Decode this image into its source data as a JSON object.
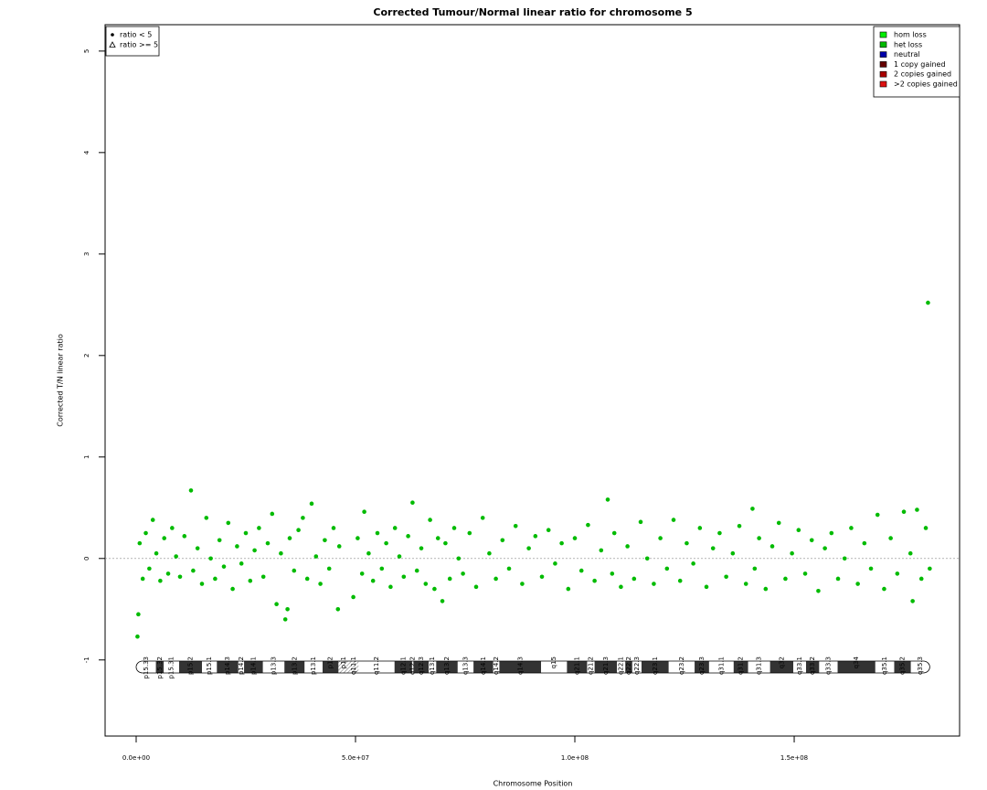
{
  "chart_data": {
    "type": "scatter",
    "title": "Corrected Tumour/Normal linear ratio for chromosome  5",
    "x_label": "Chromosome Position",
    "y_label": "Corrected T/N linear ratio",
    "xlim": [
      -7080000,
      187700000
    ],
    "ylim": [
      -1.75,
      5.26
    ],
    "xticks": [
      {
        "value": 0,
        "label": "0.0e+00"
      },
      {
        "value": 50000000,
        "label": "5.0e+07"
      },
      {
        "value": 100000000,
        "label": "1.0e+08"
      },
      {
        "value": 150000000,
        "label": "1.5e+08"
      }
    ],
    "yticks": [
      -1,
      0,
      1,
      2,
      3,
      4,
      5
    ],
    "reference_line": 0,
    "shape_legend": [
      "ratio < 5",
      "ratio >= 5"
    ],
    "legend_position": "top-right",
    "legend": [
      {
        "name": "hom loss",
        "color": "#00ee00"
      },
      {
        "name": "het loss",
        "color": "#00bb00"
      },
      {
        "name": "neutral",
        "color": "#0000aa"
      },
      {
        "name": "1 copy gained",
        "color": "#660000"
      },
      {
        "name": "2 copies gained",
        "color": "#aa0000"
      },
      {
        "name": ">2 copies gained",
        "color": "#dd1111"
      }
    ],
    "series": [
      {
        "name": "het loss",
        "color": "#00bb00",
        "x": [
          300000,
          500000,
          800000,
          1500000,
          2200000,
          3000000,
          3800000,
          4600000,
          5500000,
          6400000,
          7300000,
          8200000,
          9100000,
          10000000,
          11000000,
          12500000,
          13000000,
          14000000,
          15000000,
          16000000,
          17000000,
          18000000,
          19000000,
          20000000,
          21000000,
          22000000,
          23000000,
          24000000,
          25000000,
          26000000,
          27000000,
          28000000,
          29000000,
          30000000,
          31000000,
          32000000,
          33000000,
          34000000,
          34500000,
          35000000,
          36000000,
          37000000,
          38000000,
          39000000,
          40000000,
          41000000,
          42000000,
          43000000,
          44000000,
          45000000,
          46000000,
          46300000,
          49500000,
          50500000,
          51500000,
          52000000,
          53000000,
          54000000,
          55000000,
          56000000,
          57000000,
          58000000,
          59000000,
          60000000,
          61000000,
          62000000,
          63000000,
          64000000,
          65000000,
          66000000,
          67000000,
          68000000,
          68800000,
          69800000,
          70500000,
          71500000,
          72500000,
          73500000,
          74500000,
          76000000,
          77500000,
          79000000,
          80500000,
          82000000,
          83500000,
          85000000,
          86500000,
          88000000,
          89500000,
          91000000,
          92500000,
          94000000,
          95500000,
          97000000,
          98500000,
          100000000,
          101500000,
          103000000,
          104500000,
          106000000,
          107500000,
          108500000,
          109000000,
          110500000,
          112000000,
          113500000,
          115000000,
          116500000,
          118000000,
          119500000,
          121000000,
          122500000,
          124000000,
          125500000,
          127000000,
          128500000,
          130000000,
          131500000,
          133000000,
          134500000,
          136000000,
          137500000,
          139000000,
          140500000,
          141000000,
          142000000,
          143500000,
          145000000,
          146500000,
          148000000,
          149500000,
          151000000,
          152500000,
          154000000,
          155500000,
          157000000,
          158500000,
          160000000,
          161500000,
          163000000,
          164500000,
          166000000,
          167500000,
          169000000,
          170500000,
          172000000,
          173500000,
          175000000,
          176500000,
          177000000,
          178000000,
          179000000,
          180000000,
          180500000,
          180900000
        ],
        "values": [
          -0.77,
          -0.55,
          0.15,
          -0.2,
          0.25,
          -0.1,
          0.38,
          0.05,
          -0.22,
          0.2,
          -0.15,
          0.3,
          0.02,
          -0.18,
          0.22,
          0.67,
          -0.12,
          0.1,
          -0.25,
          0.4,
          0.0,
          -0.2,
          0.18,
          -0.08,
          0.35,
          -0.3,
          0.12,
          -0.05,
          0.25,
          -0.22,
          0.08,
          0.3,
          -0.18,
          0.15,
          0.44,
          -0.45,
          0.05,
          -0.6,
          -0.5,
          0.2,
          -0.12,
          0.28,
          0.4,
          -0.2,
          0.54,
          0.02,
          -0.25,
          0.18,
          -0.1,
          0.3,
          -0.5,
          0.12,
          -0.38,
          0.2,
          -0.15,
          0.46,
          0.05,
          -0.22,
          0.25,
          -0.1,
          0.15,
          -0.28,
          0.3,
          0.02,
          -0.18,
          0.22,
          0.55,
          -0.12,
          0.1,
          -0.25,
          0.38,
          -0.3,
          0.2,
          -0.42,
          0.15,
          -0.2,
          0.3,
          0.0,
          -0.15,
          0.25,
          -0.28,
          0.4,
          0.05,
          -0.2,
          0.18,
          -0.1,
          0.32,
          -0.25,
          0.1,
          0.22,
          -0.18,
          0.28,
          -0.05,
          0.15,
          -0.3,
          0.2,
          -0.12,
          0.33,
          -0.22,
          0.08,
          0.58,
          -0.15,
          0.25,
          -0.28,
          0.12,
          -0.2,
          0.36,
          0.0,
          -0.25,
          0.2,
          -0.1,
          0.38,
          -0.22,
          0.15,
          -0.05,
          0.3,
          -0.28,
          0.1,
          0.25,
          -0.18,
          0.05,
          0.32,
          -0.25,
          0.49,
          -0.1,
          0.2,
          -0.3,
          0.12,
          0.35,
          -0.2,
          0.05,
          0.28,
          -0.15,
          0.18,
          -0.32,
          0.1,
          0.25,
          -0.2,
          0.0,
          0.3,
          -0.25,
          0.15,
          -0.1,
          0.43,
          -0.3,
          0.2,
          -0.15,
          0.46,
          0.05,
          -0.42,
          0.48,
          -0.2,
          0.3,
          2.52,
          -0.1
        ]
      }
    ],
    "ideogram": [
      {
        "name": "p15.33",
        "start": 0,
        "end": 4500000,
        "stain": "gneg"
      },
      {
        "name": "p15.32",
        "start": 4500000,
        "end": 6300000,
        "stain": "gpos"
      },
      {
        "name": "p15.31",
        "start": 6300000,
        "end": 9800000,
        "stain": "gneg"
      },
      {
        "name": "p15.2",
        "start": 9800000,
        "end": 15000000,
        "stain": "gpos"
      },
      {
        "name": "p15.1",
        "start": 15000000,
        "end": 18400000,
        "stain": "gneg"
      },
      {
        "name": "p14.3",
        "start": 18400000,
        "end": 23300000,
        "stain": "gpos"
      },
      {
        "name": "p14.2",
        "start": 23300000,
        "end": 24600000,
        "stain": "gneg"
      },
      {
        "name": "p14.1",
        "start": 24600000,
        "end": 28900000,
        "stain": "gpos"
      },
      {
        "name": "p13.3",
        "start": 28900000,
        "end": 33800000,
        "stain": "gneg"
      },
      {
        "name": "p13.2",
        "start": 33800000,
        "end": 38400000,
        "stain": "gpos"
      },
      {
        "name": "p13.1",
        "start": 38400000,
        "end": 42500000,
        "stain": "gneg"
      },
      {
        "name": "p12",
        "start": 42500000,
        "end": 46100000,
        "stain": "gpos"
      },
      {
        "name": "p11",
        "start": 46100000,
        "end": 48400000,
        "stain": "acen"
      },
      {
        "name": "q11.1",
        "start": 48400000,
        "end": 50700000,
        "stain": "acen"
      },
      {
        "name": "q11.2",
        "start": 50700000,
        "end": 58900000,
        "stain": "gneg"
      },
      {
        "name": "q12.1",
        "start": 58900000,
        "end": 62900000,
        "stain": "gpos"
      },
      {
        "name": "q12.2",
        "start": 62900000,
        "end": 63200000,
        "stain": "gneg"
      },
      {
        "name": "q12.3",
        "start": 63200000,
        "end": 66700000,
        "stain": "gpos"
      },
      {
        "name": "q13.1",
        "start": 66700000,
        "end": 68400000,
        "stain": "gneg"
      },
      {
        "name": "q13.2",
        "start": 68400000,
        "end": 73300000,
        "stain": "gpos"
      },
      {
        "name": "q13.3",
        "start": 73300000,
        "end": 76900000,
        "stain": "gneg"
      },
      {
        "name": "q14.1",
        "start": 76900000,
        "end": 81400000,
        "stain": "gpos"
      },
      {
        "name": "q14.2",
        "start": 81400000,
        "end": 82800000,
        "stain": "gneg"
      },
      {
        "name": "q14.3",
        "start": 82800000,
        "end": 92300000,
        "stain": "gpos"
      },
      {
        "name": "q15",
        "start": 92300000,
        "end": 98200000,
        "stain": "gneg"
      },
      {
        "name": "q21.1",
        "start": 98200000,
        "end": 102800000,
        "stain": "gpos"
      },
      {
        "name": "q21.2",
        "start": 102800000,
        "end": 104500000,
        "stain": "gneg"
      },
      {
        "name": "q21.3",
        "start": 104500000,
        "end": 109600000,
        "stain": "gpos"
      },
      {
        "name": "q22.1",
        "start": 109600000,
        "end": 111500000,
        "stain": "gneg"
      },
      {
        "name": "q22.2",
        "start": 111500000,
        "end": 113100000,
        "stain": "gpos"
      },
      {
        "name": "q22.3",
        "start": 113100000,
        "end": 115200000,
        "stain": "gneg"
      },
      {
        "name": "q23.1",
        "start": 115200000,
        "end": 121400000,
        "stain": "gpos"
      },
      {
        "name": "q23.2",
        "start": 121400000,
        "end": 127300000,
        "stain": "gneg"
      },
      {
        "name": "q23.3",
        "start": 127300000,
        "end": 130600000,
        "stain": "gpos"
      },
      {
        "name": "q31.1",
        "start": 130600000,
        "end": 136200000,
        "stain": "gneg"
      },
      {
        "name": "q31.2",
        "start": 136200000,
        "end": 139500000,
        "stain": "gpos"
      },
      {
        "name": "q31.3",
        "start": 139500000,
        "end": 144500000,
        "stain": "gneg"
      },
      {
        "name": "q32",
        "start": 144500000,
        "end": 149800000,
        "stain": "gpos"
      },
      {
        "name": "q33.1",
        "start": 149800000,
        "end": 152700000,
        "stain": "gneg"
      },
      {
        "name": "q33.2",
        "start": 152700000,
        "end": 155700000,
        "stain": "gpos"
      },
      {
        "name": "q33.3",
        "start": 155700000,
        "end": 159900000,
        "stain": "gneg"
      },
      {
        "name": "q34",
        "start": 159900000,
        "end": 168500000,
        "stain": "gpos"
      },
      {
        "name": "q35.1",
        "start": 168500000,
        "end": 172800000,
        "stain": "gneg"
      },
      {
        "name": "q35.2",
        "start": 172800000,
        "end": 176600000,
        "stain": "gpos"
      },
      {
        "name": "q35.3",
        "start": 176600000,
        "end": 180900000,
        "stain": "gneg"
      }
    ]
  }
}
